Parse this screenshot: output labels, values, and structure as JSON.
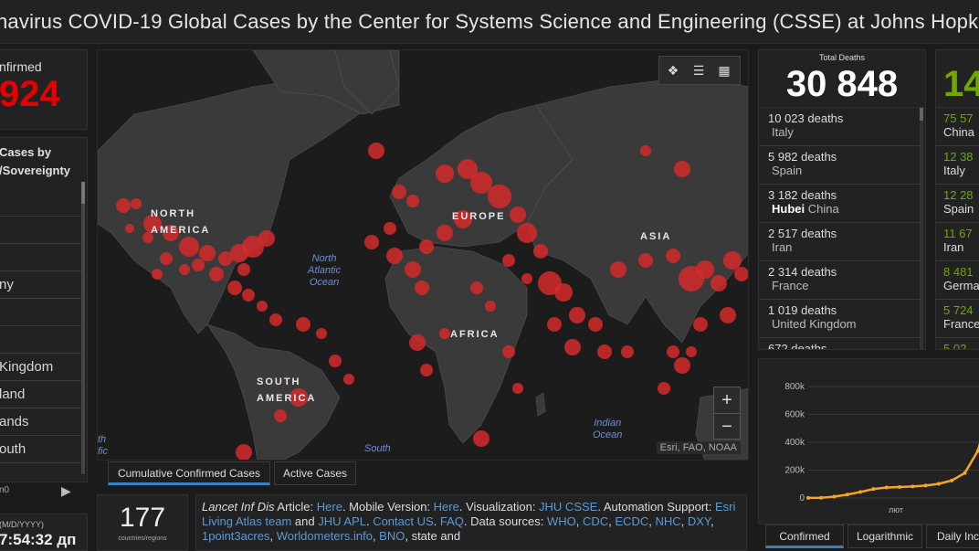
{
  "header": {
    "title": "navirus COVID-19 Global Cases by the Center for Systems Science and Engineering (CSSE) at Johns Hopkins"
  },
  "confirmed": {
    "label": "nfirmed",
    "value": "924"
  },
  "cases_list": {
    "title_line1": "Cases by",
    "title_line2": "/Sovereignty",
    "items": [
      "",
      "",
      "",
      "ny",
      "",
      "",
      "Kingdom",
      "land",
      "ands",
      "outh"
    ],
    "footer": "n0"
  },
  "last_updated": {
    "label": "(M/D/YYYY)",
    "value": "7:54:32 дп"
  },
  "map": {
    "labels": {
      "north_america": "NORTH AMERICA",
      "south_america": "SOUTH AMERICA",
      "europe": "EUROPE",
      "asia": "ASIA",
      "africa": "AFRICA"
    },
    "oceans": {
      "north_atlantic": "North Atlantic Ocean",
      "indian": "Indian Ocean",
      "south": "South",
      "pacific_partial": "th fic"
    },
    "attribution": "Esri, FAO, NOAA",
    "tabs": [
      "Cumulative Confirmed Cases",
      "Active Cases"
    ],
    "icons": [
      "bookmark-icon",
      "list-icon",
      "qr-icon"
    ]
  },
  "countries": {
    "value": "177",
    "label": "countries/regions"
  },
  "info": {
    "article_label": "Lancet Inf Dis",
    "text_article": " Article: ",
    "link_here1": "Here",
    "text_mobile": ". Mobile Version: ",
    "link_here2": "Here",
    "text_viz": ". Visualization: ",
    "link_jhu_csse": "JHU CSSE",
    "text_auto": ". Automation Support: ",
    "link_esri": "Esri Living Atlas team",
    "text_and": " and ",
    "link_apl": "JHU APL",
    "text_dot": ". ",
    "link_contact": "Contact US",
    "text_dot2": ". ",
    "link_faq": "FAQ",
    "text_sources": ". Data sources: ",
    "sources": [
      "WHO",
      "CDC",
      "ECDC",
      "NHC",
      "DXY",
      "1point3acres",
      "Worldometers.info",
      "BNO"
    ],
    "text_state": ", state and"
  },
  "deaths": {
    "label": "Total Deaths",
    "value": "30 848",
    "rows": [
      {
        "count": "10 023 deaths",
        "place": "Italy"
      },
      {
        "count": "5 982 deaths",
        "place": "Spain"
      },
      {
        "count": "3 182 deaths",
        "place_bold": "Hubei",
        "place": "China"
      },
      {
        "count": "2 517 deaths",
        "place": "Iran"
      },
      {
        "count": "2 314 deaths",
        "place": "France"
      },
      {
        "count": "1 019 deaths",
        "place": "United Kingdom"
      },
      {
        "count": "672 deaths",
        "place": ""
      }
    ]
  },
  "recovered": {
    "value": "14",
    "rows": [
      {
        "count": "75 57",
        "place": "China"
      },
      {
        "count": "12 38",
        "place": "Italy"
      },
      {
        "count": "12 28",
        "place": "Spain"
      },
      {
        "count": "11 67",
        "place": "Iran"
      },
      {
        "count": "8 481",
        "place": "Germa"
      },
      {
        "count": "5 724",
        "place": "France"
      },
      {
        "count": "5 02",
        "place": ""
      }
    ],
    "color": "#70a800"
  },
  "chart_data": {
    "type": "line",
    "title": "",
    "xlabel": "",
    "ylabel": "",
    "x_tick_labels": [
      "лют"
    ],
    "y_tick_labels": [
      "0",
      "200k",
      "400k",
      "600k",
      "800k"
    ],
    "ylim": [
      0,
      800000
    ],
    "series": [
      {
        "color": "#f5a623",
        "x": [
          0,
          5,
          10,
          15,
          20,
          25,
          30,
          35,
          40,
          45,
          50,
          55,
          60,
          65,
          70
        ],
        "values": [
          555,
          2000,
          9800,
          24500,
          43100,
          64400,
          75600,
          78900,
          83100,
          89200,
          101900,
          125800,
          179100,
          337500,
          662000
        ]
      }
    ],
    "x_range": [
      0,
      70
    ]
  },
  "chart_tabs": [
    "Confirmed",
    "Logarithmic",
    "Daily Inc"
  ],
  "colors": {
    "confirmed_red": "#e60000",
    "dot_red": "#d42a2a",
    "recovered_green": "#70a800",
    "chart_line": "#f5a623"
  }
}
